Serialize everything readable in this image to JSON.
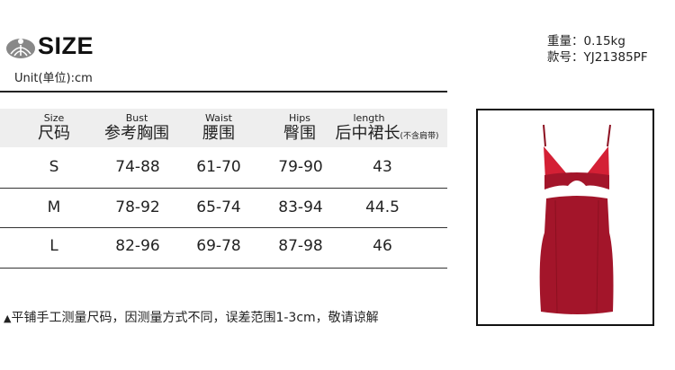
{
  "header": {
    "title": "SIZE",
    "unit": "Unit(单位):cm",
    "weight": "重量：0.15kg",
    "model": "款号：YJ21385PF"
  },
  "table": {
    "columns": [
      {
        "en": "Size",
        "cn": "尺码",
        "note": ""
      },
      {
        "en": "Bust",
        "cn": "参考胸围",
        "note": ""
      },
      {
        "en": "Waist",
        "cn": "腰围",
        "note": ""
      },
      {
        "en": "Hips",
        "cn": "臀围",
        "note": ""
      },
      {
        "en": "length",
        "cn": "后中裙长",
        "note": "(不含肩带)"
      }
    ],
    "rows": [
      [
        "S",
        "74-88",
        "61-70",
        "79-90",
        "43"
      ],
      [
        "M",
        "78-92",
        "65-74",
        "83-94",
        "44.5"
      ],
      [
        "L",
        "82-96",
        "69-78",
        "87-98",
        "46"
      ]
    ]
  },
  "footnote": "平铺手工测量尺码，因测量方式不同，误差范围1-3cm，敬请谅解",
  "colors": {
    "dress": "#a3152a",
    "dress_cup": "#d42035",
    "header_bg": "#eeeeee"
  },
  "icons": {
    "logo": "yoga-figure-logo",
    "footnote": "triangle-up-icon"
  }
}
